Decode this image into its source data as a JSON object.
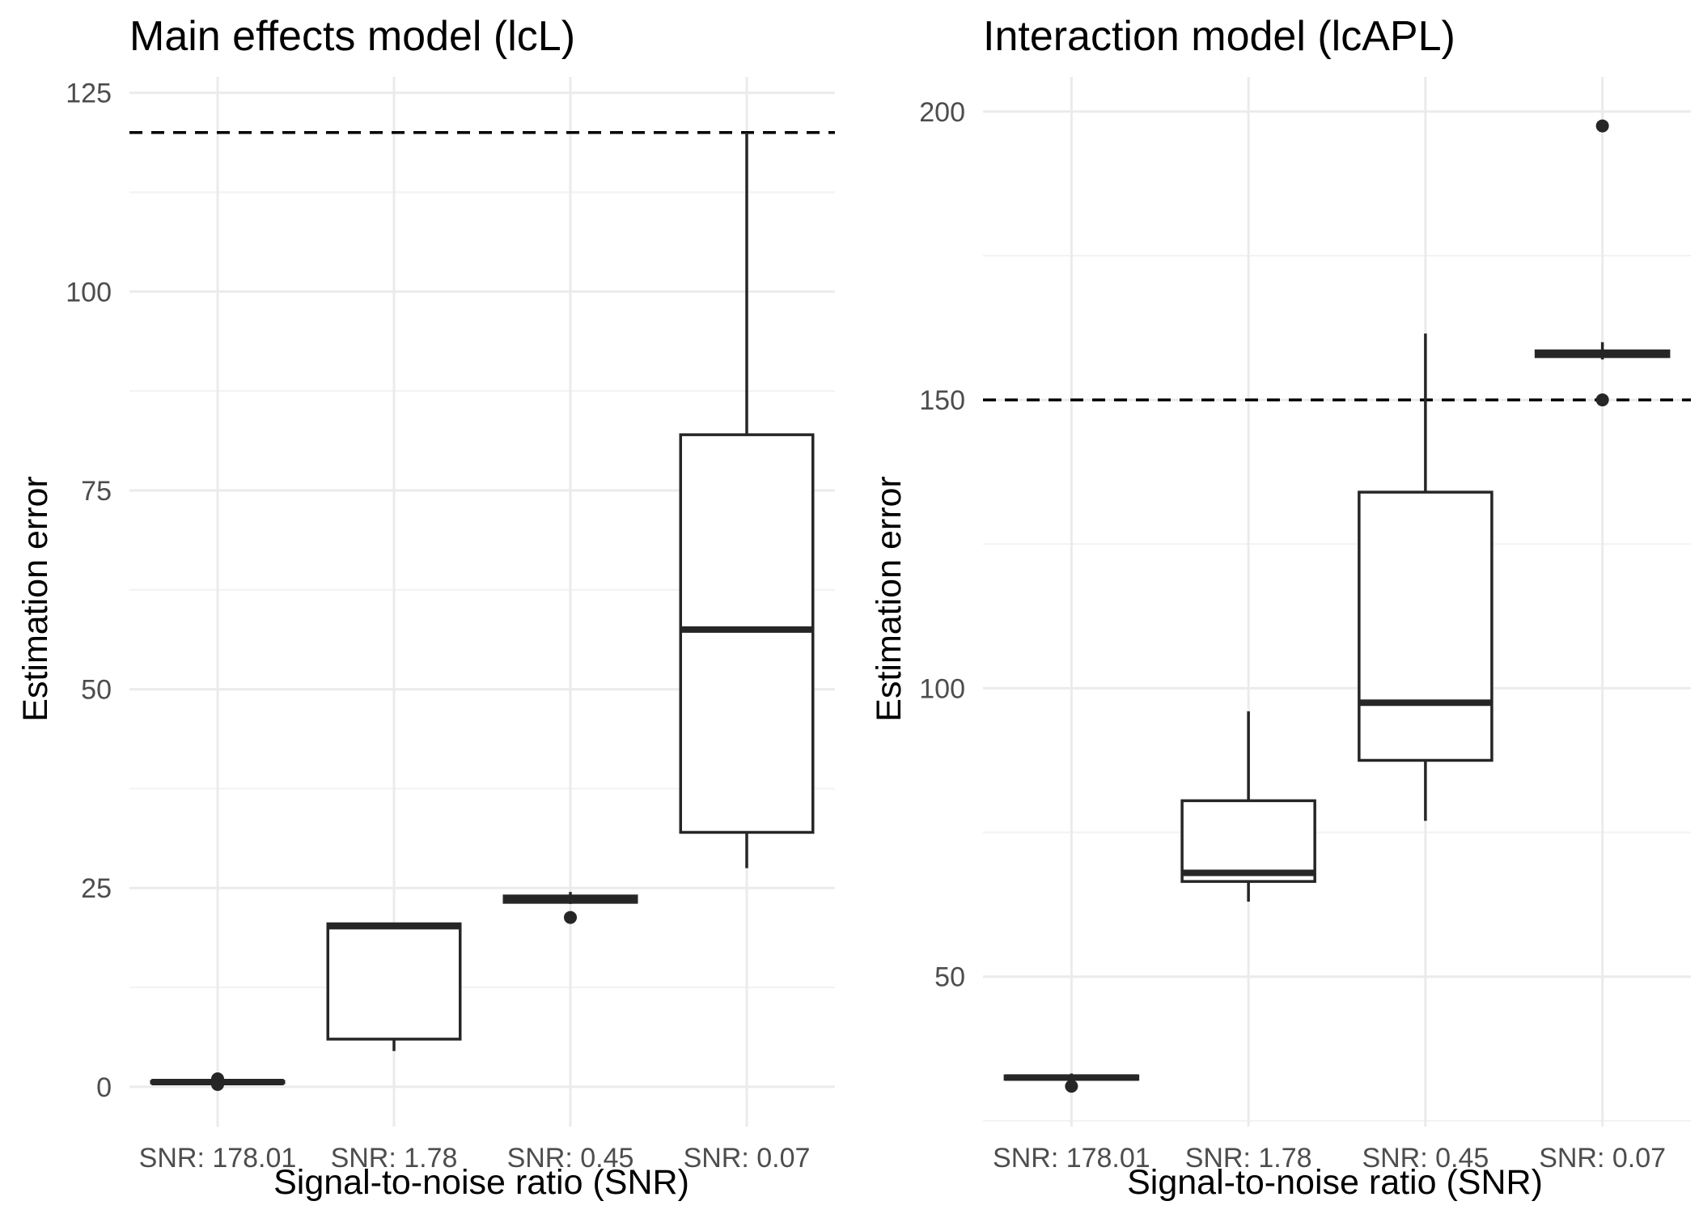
{
  "chart_data": [
    {
      "type": "boxplot",
      "title": "Main effects model (lcL)",
      "xlabel": "Signal-to-noise ratio (SNR)",
      "ylabel": "Estimation error",
      "categories": [
        "SNR: 178.01",
        "SNR: 1.78",
        "SNR: 0.45",
        "SNR: 0.07"
      ],
      "ylim": [
        -5,
        127
      ],
      "yticks": [
        0,
        25,
        50,
        75,
        100,
        125
      ],
      "ytick_labels": [
        "0",
        "25",
        "50",
        "75",
        "100",
        "125"
      ],
      "yminor": [
        12.5,
        37.5,
        62.5,
        87.5,
        112.5
      ],
      "grid": true,
      "boxes": [
        {
          "category": "SNR: 178.01",
          "low": 0.5,
          "q1": 0.5,
          "median": 0.6,
          "q3": 0.7,
          "high": 0.8,
          "outliers": [
            0.3,
            1.0
          ]
        },
        {
          "category": "SNR: 1.78",
          "low": 4.5,
          "q1": 6.0,
          "median": 20.2,
          "q3": 20.5,
          "high": 20.5,
          "outliers": []
        },
        {
          "category": "SNR: 0.45",
          "low": 23.0,
          "q1": 23.2,
          "median": 23.7,
          "q3": 24.0,
          "high": 24.5,
          "outliers": [
            21.3
          ]
        },
        {
          "category": "SNR: 0.07",
          "low": 27.5,
          "q1": 32.0,
          "median": 57.5,
          "q3": 82.0,
          "high": 120.0,
          "outliers": []
        }
      ],
      "reference_line": 120
    },
    {
      "type": "boxplot",
      "title": "Interaction model (lcAPL)",
      "xlabel": "Signal-to-noise ratio (SNR)",
      "ylabel": "Estimation error",
      "categories": [
        "SNR: 178.01",
        "SNR: 1.78",
        "SNR: 0.45",
        "SNR: 0.07"
      ],
      "ylim": [
        24,
        206
      ],
      "yticks": [
        50,
        100,
        150,
        200
      ],
      "ytick_labels": [
        "50",
        "100",
        "150",
        "200"
      ],
      "yminor": [
        25,
        75,
        125,
        175
      ],
      "grid": true,
      "boxes": [
        {
          "category": "SNR: 178.01",
          "low": 32.0,
          "q1": 32.2,
          "median": 32.5,
          "q3": 32.8,
          "high": 33.2,
          "outliers": [
            31.0
          ]
        },
        {
          "category": "SNR: 1.78",
          "low": 63.0,
          "q1": 66.5,
          "median": 68.0,
          "q3": 80.5,
          "high": 96.0,
          "outliers": []
        },
        {
          "category": "SNR: 0.45",
          "low": 77.0,
          "q1": 87.5,
          "median": 97.5,
          "q3": 134.0,
          "high": 161.5,
          "outliers": []
        },
        {
          "category": "SNR: 0.07",
          "low": 157.0,
          "q1": 157.5,
          "median": 158.0,
          "q3": 158.5,
          "high": 160.0,
          "outliers": [
            197.5,
            150.0
          ]
        }
      ],
      "reference_line": 150
    }
  ]
}
